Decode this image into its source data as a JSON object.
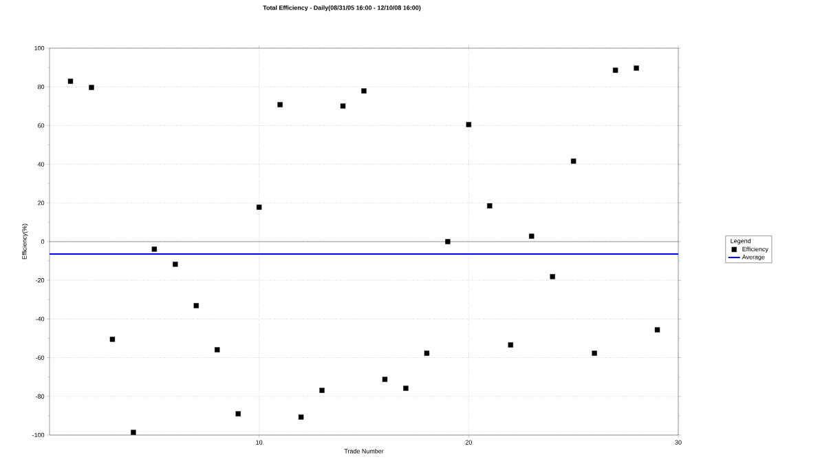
{
  "chart_data": {
    "type": "scatter",
    "title": "Total Efficiency - Daily(08/31/05 16:00 - 12/10/08 16:00)",
    "xlabel": "Trade Number",
    "ylabel": "Efficiency(%)",
    "legend_title": "Legend",
    "x": [
      1,
      2,
      3,
      4,
      5,
      6,
      7,
      8,
      9,
      10,
      11,
      12,
      13,
      14,
      15,
      16,
      17,
      18,
      19,
      20,
      21,
      22,
      23,
      24,
      25,
      26,
      27,
      28,
      29
    ],
    "series": [
      {
        "name": "Efficiency",
        "color": "#000000",
        "marker": "square",
        "values": [
          82.9,
          79.7,
          -50.5,
          -98.6,
          -3.9,
          -11.7,
          -33.1,
          -55.9,
          -89,
          17.8,
          70.8,
          -90.7,
          -76.9,
          70.1,
          77.9,
          -71.2,
          -75.8,
          -57.7,
          0,
          60.5,
          18.5,
          -53.4,
          2.8,
          -18.1,
          41.6,
          -57.7,
          88.6,
          89.7,
          -45.6
        ]
      },
      {
        "name": "Average",
        "type": "line",
        "marker": "none",
        "color": "#0000ff",
        "x": [
          0,
          30
        ],
        "values": [
          -6.4,
          -6.4
        ]
      }
    ],
    "xlim": [
      0,
      30
    ],
    "xticks": [
      10,
      20,
      30
    ],
    "ylim": [
      -100,
      100
    ],
    "yticks": [
      -100,
      -80,
      -60,
      -40,
      -20,
      0,
      20,
      40,
      60,
      80,
      100
    ],
    "grid": true,
    "legend": "right",
    "ref_lines": [
      {
        "axis": "y",
        "value": 0,
        "color": "#000000"
      }
    ]
  }
}
